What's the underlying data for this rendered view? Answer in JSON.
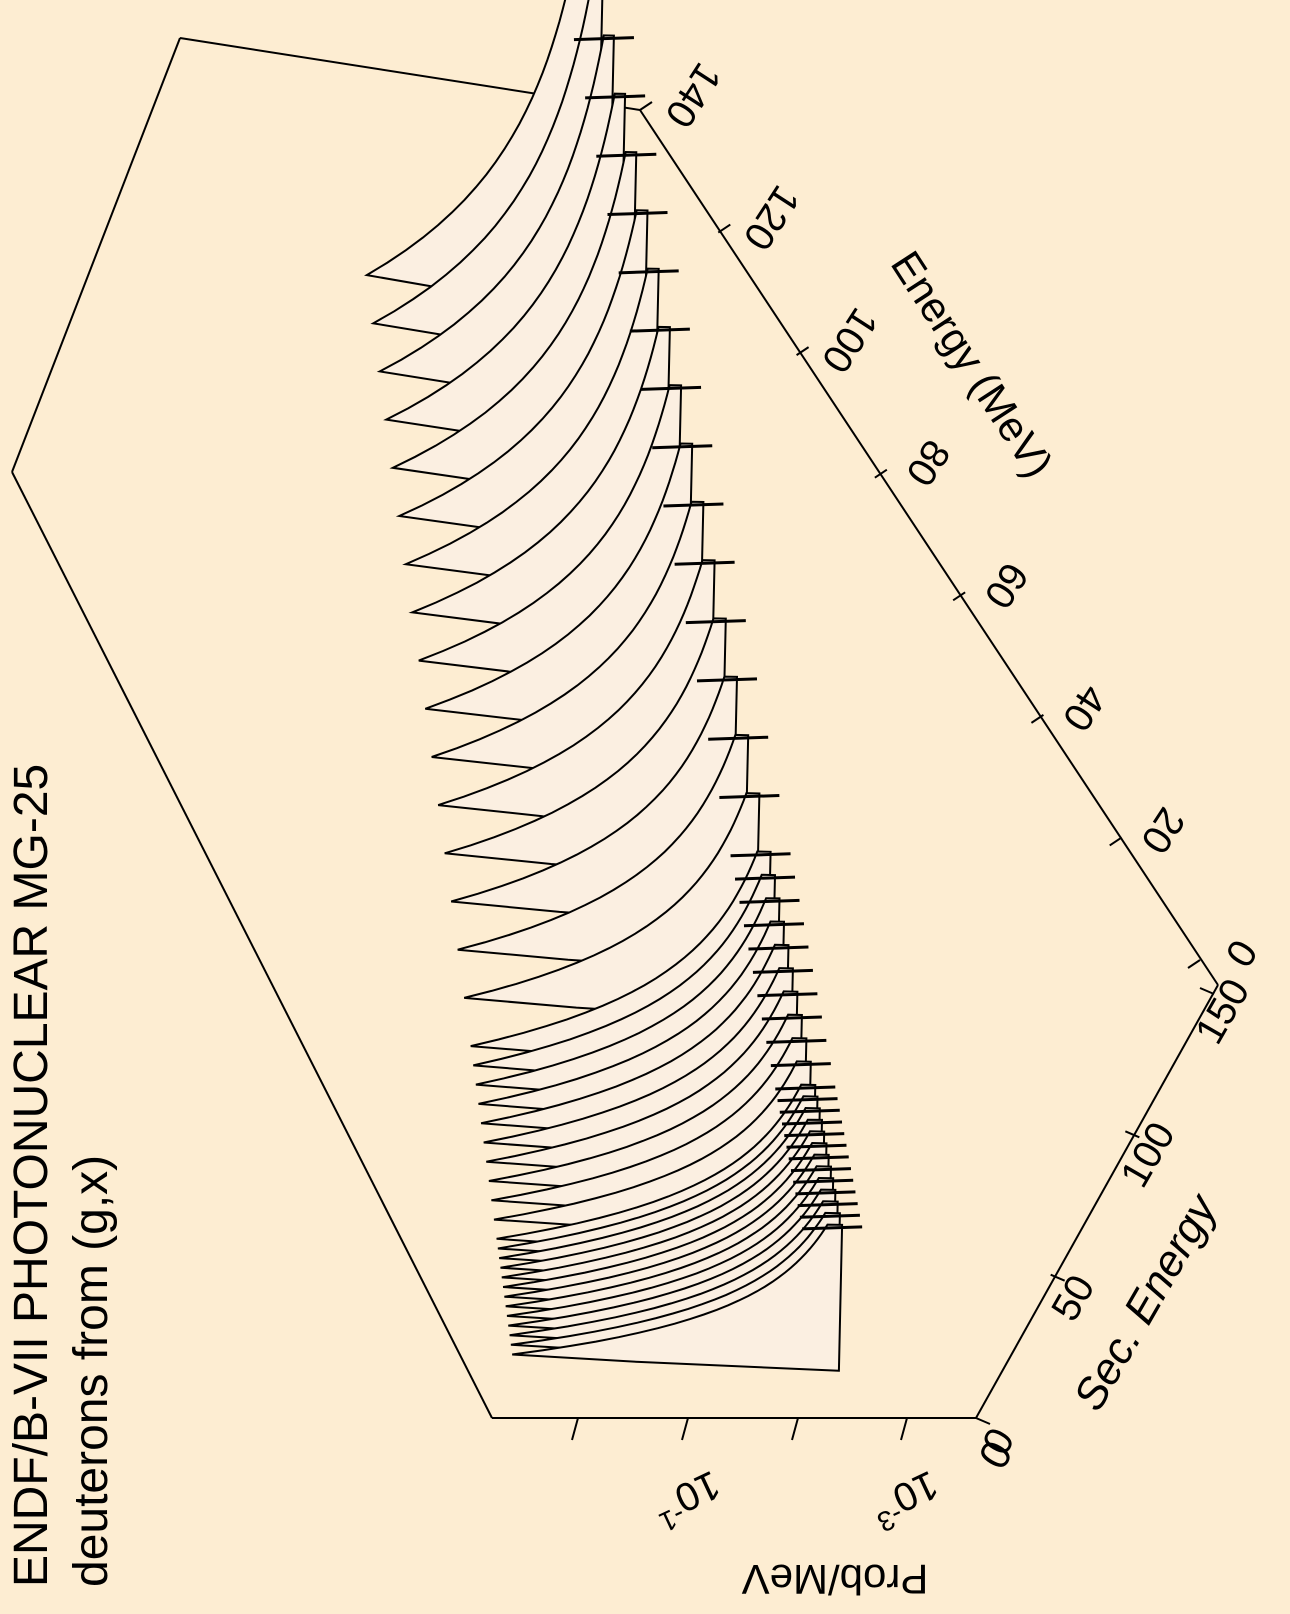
{
  "page": {
    "background": "#fdedd2",
    "title_line1": "ENDF/B-VII PHOTONUCLEAR MG-25",
    "title_line2": "deuterons from (g,x)"
  },
  "chart_data": {
    "type": "surface-3d",
    "title": "ENDF/B-VII PHOTONUCLEAR MG-25",
    "subtitle": "deuterons from (g,x)",
    "incident_energy_axis": {
      "label": "Energy (MeV)",
      "range": [
        0,
        140
      ],
      "ticks": [
        "0",
        "20",
        "40",
        "60",
        "80",
        "100",
        "120",
        "140"
      ]
    },
    "secondary_energy_axis": {
      "label": "Sec. Energy",
      "range": [
        0,
        150
      ],
      "ticks": [
        "0",
        "50",
        "100",
        "150"
      ]
    },
    "probability_axis": {
      "label": "Prob/MeV",
      "scale": "log",
      "tick_labels": [
        {
          "base": "10",
          "exp": "-3"
        },
        {
          "base": "10",
          "exp": "-1"
        }
      ]
    },
    "curve_fill": "#fbefe1",
    "incident_energies_MeV": [
      18,
      19,
      20,
      21,
      22,
      23,
      24,
      25,
      26,
      27,
      28,
      29,
      30,
      32,
      34,
      36,
      38,
      40,
      42,
      44,
      46,
      48,
      50,
      55,
      60,
      65,
      70,
      75,
      80,
      85,
      90,
      95,
      100,
      105,
      110,
      115,
      120,
      125,
      130
    ]
  }
}
